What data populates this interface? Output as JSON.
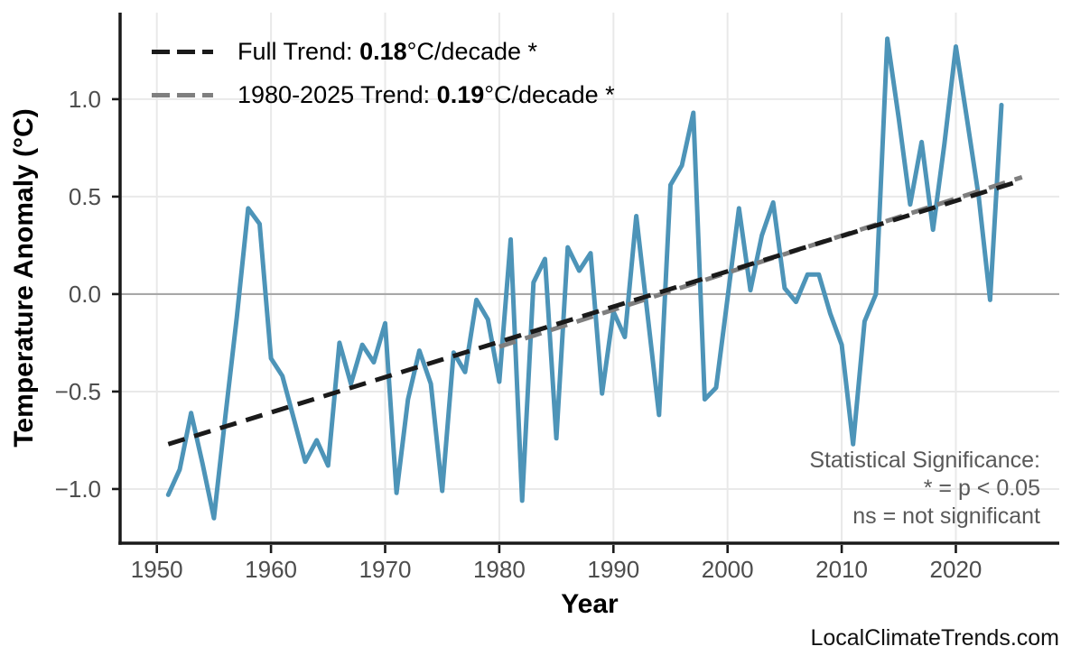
{
  "chart_data": {
    "type": "line",
    "title": "",
    "xlabel": "Year",
    "ylabel": "Temperature Anomaly (°C)",
    "xlim": [
      1946.78,
      2029.06
    ],
    "ylim": [
      -1.278,
      1.444
    ],
    "grid": "major-only",
    "legend_position": "top-left-inside",
    "x_ticks": [
      1950,
      1960,
      1970,
      1980,
      1990,
      2000,
      2010,
      2020
    ],
    "x_tick_labels": [
      "1950",
      "1960",
      "1970",
      "1980",
      "1990",
      "2000",
      "2010",
      "2020"
    ],
    "y_ticks": [
      1.0,
      0.5,
      0.0,
      -0.5,
      -1.0
    ],
    "y_tick_labels": [
      "1.0",
      "0.5",
      "0.0",
      "−0.5",
      "−1.0"
    ],
    "series": [
      {
        "name": "temperature-anomaly",
        "type": "line",
        "color": "#4d94b8",
        "width": 5,
        "years": [
          1951,
          1952,
          1953,
          1954,
          1955,
          1956,
          1957,
          1958,
          1959,
          1960,
          1961,
          1962,
          1963,
          1964,
          1965,
          1966,
          1967,
          1968,
          1969,
          1970,
          1971,
          1972,
          1973,
          1974,
          1975,
          1976,
          1977,
          1978,
          1979,
          1980,
          1981,
          1982,
          1983,
          1984,
          1985,
          1986,
          1987,
          1988,
          1989,
          1990,
          1991,
          1992,
          1993,
          1994,
          1995,
          1996,
          1997,
          1998,
          1999,
          2000,
          2001,
          2002,
          2003,
          2004,
          2005,
          2006,
          2007,
          2008,
          2009,
          2010,
          2011,
          2012,
          2013,
          2014,
          2015,
          2016,
          2017,
          2018,
          2019,
          2020,
          2021,
          2022,
          2023,
          2024
        ],
        "values": [
          -1.03,
          -0.9,
          -0.61,
          -0.87,
          -1.15,
          -0.63,
          -0.12,
          0.44,
          0.36,
          -0.33,
          -0.42,
          -0.64,
          -0.86,
          -0.75,
          -0.88,
          -0.25,
          -0.46,
          -0.26,
          -0.35,
          -0.15,
          -1.02,
          -0.54,
          -0.29,
          -0.46,
          -1.01,
          -0.3,
          -0.4,
          -0.03,
          -0.13,
          -0.45,
          0.28,
          -1.06,
          0.06,
          0.18,
          -0.74,
          0.24,
          0.12,
          0.21,
          -0.51,
          -0.09,
          -0.22,
          0.4,
          -0.11,
          -0.62,
          0.56,
          0.66,
          0.93,
          -0.54,
          -0.48,
          -0.02,
          0.44,
          0.02,
          0.3,
          0.47,
          0.03,
          -0.04,
          0.1,
          0.1,
          -0.1,
          -0.26,
          -0.77,
          -0.14,
          0.0,
          1.31,
          0.9,
          0.46,
          0.78,
          0.33,
          0.77,
          1.27,
          0.89,
          0.5,
          -0.03,
          0.97
        ]
      },
      {
        "name": "full-trend",
        "type": "dashed-line",
        "color": "#1a1a1a",
        "width": 5,
        "slope_per_decade": 0.18,
        "x": [
          1951,
          2025.5
        ],
        "y": [
          -0.77,
          0.578
        ]
      },
      {
        "name": "recent-trend",
        "type": "dashed-line",
        "color": "#7f7f7f",
        "width": 5,
        "slope_per_decade": 0.19,
        "x": [
          1980,
          2025.8
        ],
        "y": [
          -0.27,
          0.6
        ]
      }
    ],
    "colors": {
      "grid_line": "#e9e9e9",
      "zero_line": "#a8a8a8",
      "axis_line": "#1a1a1a",
      "tick_text": "#4d4d4d"
    }
  },
  "legend": {
    "full": {
      "prefix": "Full Trend: ",
      "value": "0.18",
      "suffix": "°C/decade *",
      "color": "#1a1a1a"
    },
    "recent": {
      "prefix": "1980-2025 Trend: ",
      "value": "0.19",
      "suffix": "°C/decade *",
      "color": "#7f7f7f"
    }
  },
  "annotations": {
    "significance": [
      "Statistical Significance:",
      "* = p < 0.05",
      "ns = not significant"
    ],
    "watermark": "LocalClimateTrends.com"
  }
}
